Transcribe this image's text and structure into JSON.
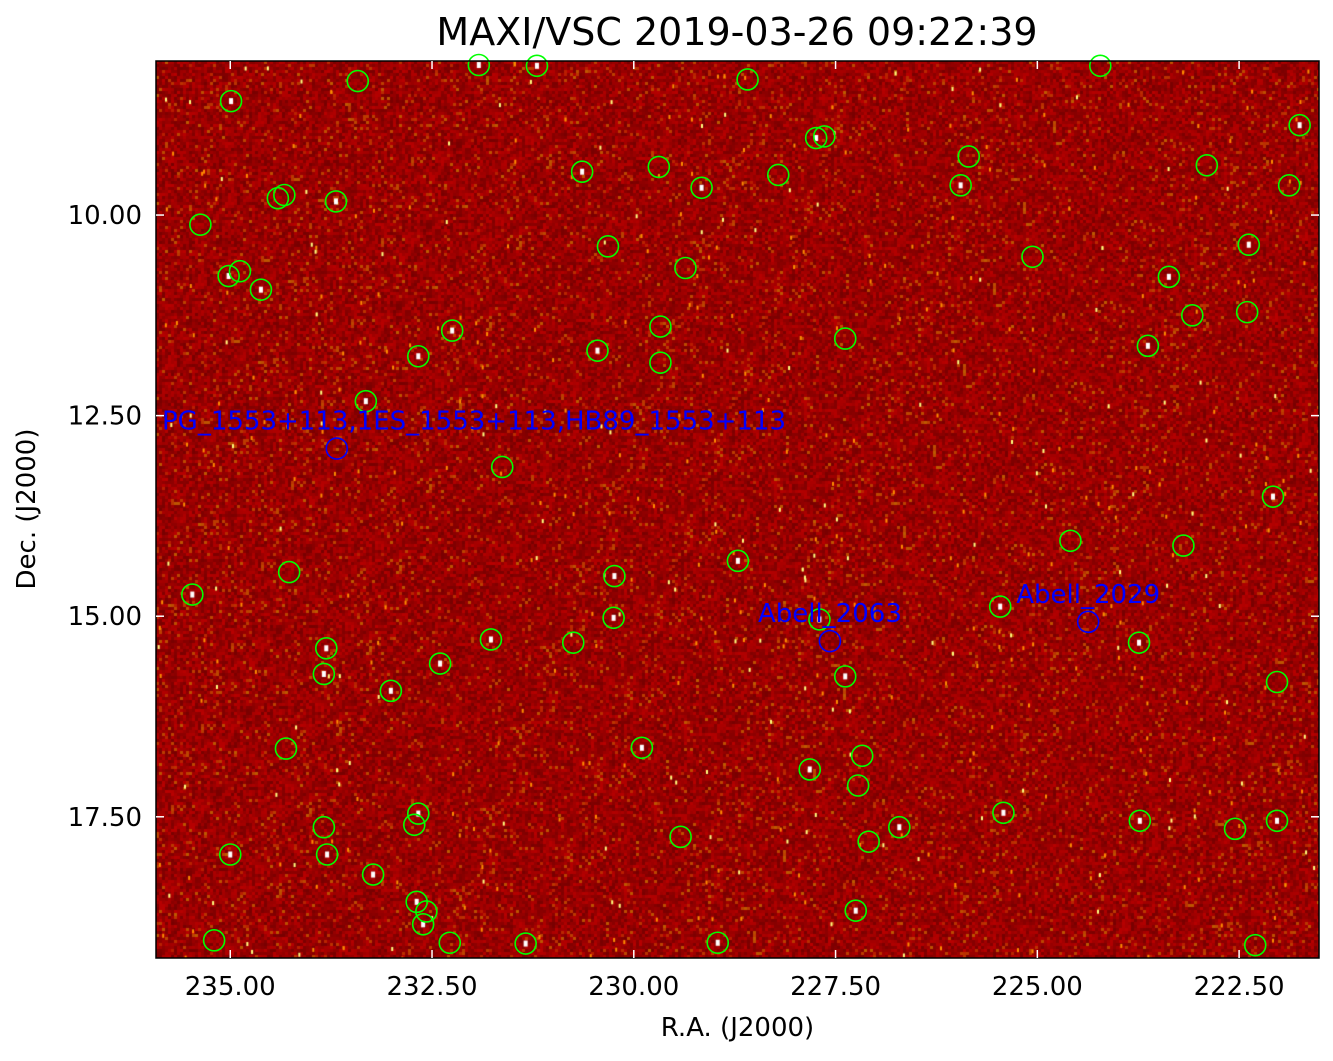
{
  "chart_data": {
    "type": "scatter",
    "title": "MAXI/VSC 2019-03-26 09:22:39",
    "xlabel": "R.A. (J2000)",
    "ylabel": "Dec. (J2000)",
    "xlim": [
      235.92,
      221.51
    ],
    "ylim": [
      8.08,
      19.26
    ],
    "x_ticks": [
      "235.00",
      "232.50",
      "230.00",
      "227.50",
      "225.00",
      "222.50"
    ],
    "y_ticks": [
      "10.00",
      "12.50",
      "15.00",
      "17.50"
    ],
    "y_inverted": true,
    "grid": false,
    "background": "X-ray sky image, red heat colormap",
    "colors": {
      "catalog": "#00ff00",
      "labeled": "#0000ff",
      "image": "#a00000"
    },
    "catalog_sources": [
      [
        234.99,
        8.58
      ],
      [
        233.42,
        8.33
      ],
      [
        231.92,
        8.13
      ],
      [
        231.2,
        8.14
      ],
      [
        228.59,
        8.31
      ],
      [
        224.22,
        8.14
      ],
      [
        221.75,
        8.88
      ],
      [
        227.74,
        9.04
      ],
      [
        227.64,
        9.02
      ],
      [
        225.85,
        9.27
      ],
      [
        225.95,
        9.63
      ],
      [
        222.9,
        9.38
      ],
      [
        221.88,
        9.63
      ],
      [
        230.64,
        9.46
      ],
      [
        229.69,
        9.4
      ],
      [
        229.16,
        9.66
      ],
      [
        228.21,
        9.5
      ],
      [
        234.41,
        9.79
      ],
      [
        234.33,
        9.75
      ],
      [
        233.69,
        9.83
      ],
      [
        235.37,
        10.12
      ],
      [
        230.32,
        10.39
      ],
      [
        222.38,
        10.37
      ],
      [
        225.06,
        10.52
      ],
      [
        235.02,
        10.76
      ],
      [
        234.88,
        10.7
      ],
      [
        234.62,
        10.93
      ],
      [
        229.36,
        10.66
      ],
      [
        223.37,
        10.77
      ],
      [
        223.08,
        11.25
      ],
      [
        222.4,
        11.21
      ],
      [
        232.25,
        11.44
      ],
      [
        229.67,
        11.39
      ],
      [
        227.38,
        11.54
      ],
      [
        232.67,
        11.76
      ],
      [
        230.45,
        11.69
      ],
      [
        229.67,
        11.84
      ],
      [
        223.63,
        11.63
      ],
      [
        233.32,
        12.32
      ],
      [
        231.63,
        13.14
      ],
      [
        222.08,
        13.51
      ],
      [
        224.59,
        14.06
      ],
      [
        223.19,
        14.12
      ],
      [
        228.71,
        14.31
      ],
      [
        234.27,
        14.45
      ],
      [
        235.47,
        14.73
      ],
      [
        230.24,
        14.5
      ],
      [
        230.25,
        15.02
      ],
      [
        225.46,
        14.88
      ],
      [
        227.7,
        15.04
      ],
      [
        233.81,
        15.4
      ],
      [
        231.77,
        15.29
      ],
      [
        230.75,
        15.33
      ],
      [
        223.74,
        15.33
      ],
      [
        233.84,
        15.72
      ],
      [
        232.4,
        15.59
      ],
      [
        227.38,
        15.75
      ],
      [
        222.03,
        15.82
      ],
      [
        233.01,
        15.93
      ],
      [
        234.31,
        16.65
      ],
      [
        229.9,
        16.64
      ],
      [
        227.17,
        16.74
      ],
      [
        227.82,
        16.91
      ],
      [
        227.22,
        17.11
      ],
      [
        232.67,
        17.46
      ],
      [
        232.72,
        17.6
      ],
      [
        233.84,
        17.63
      ],
      [
        233.8,
        17.97
      ],
      [
        235.0,
        17.97
      ],
      [
        229.42,
        17.75
      ],
      [
        227.09,
        17.81
      ],
      [
        226.71,
        17.63
      ],
      [
        225.42,
        17.45
      ],
      [
        223.73,
        17.55
      ],
      [
        222.55,
        17.65
      ],
      [
        222.03,
        17.55
      ],
      [
        233.23,
        18.22
      ],
      [
        232.69,
        18.56
      ],
      [
        232.57,
        18.68
      ],
      [
        232.61,
        18.84
      ],
      [
        227.25,
        18.67
      ],
      [
        235.2,
        19.04
      ],
      [
        232.28,
        19.07
      ],
      [
        231.34,
        19.08
      ],
      [
        228.96,
        19.07
      ],
      [
        222.3,
        19.1
      ]
    ],
    "labeled_sources": [
      {
        "name": "PG_1553+113,1ES_1553+113,HB89_1553+113",
        "ra": 233.68,
        "dec": 12.91
      },
      {
        "name": "Abell_2063",
        "ra": 227.57,
        "dec": 15.31
      },
      {
        "name": "Abell_2029",
        "ra": 224.37,
        "dec": 15.07
      }
    ]
  }
}
